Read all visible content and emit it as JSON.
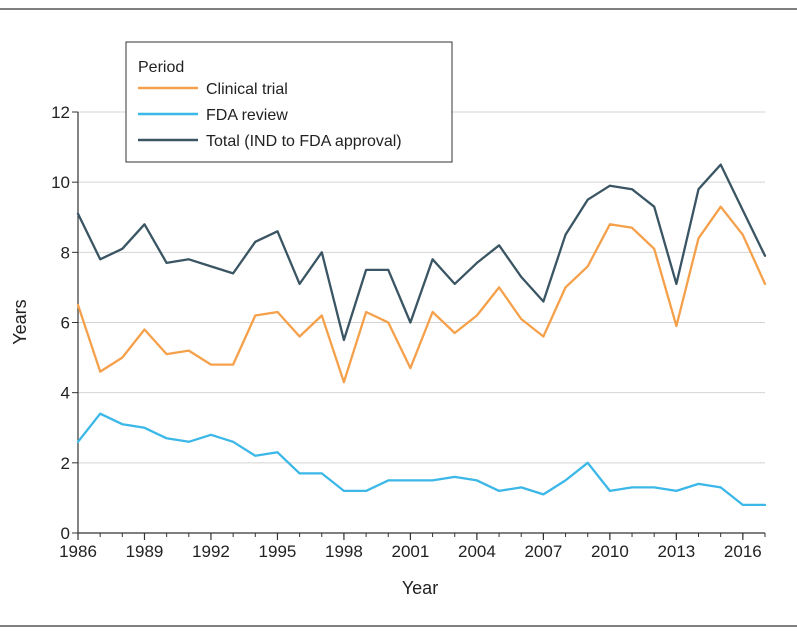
{
  "chart_data": {
    "type": "line",
    "xlabel": "Year",
    "ylabel": "Years",
    "xlim": [
      1986,
      2017
    ],
    "ylim": [
      0,
      12
    ],
    "x_ticks": [
      "1986",
      "1989",
      "1992",
      "1995",
      "1998",
      "2001",
      "2004",
      "2007",
      "2010",
      "2013",
      "2016"
    ],
    "y_ticks": [
      "0",
      "2",
      "4",
      "6",
      "8",
      "10",
      "12"
    ],
    "grid": "horizontal",
    "legend": {
      "title": "Period",
      "position": "top-left"
    },
    "x": [
      1986,
      1987,
      1988,
      1989,
      1990,
      1991,
      1992,
      1993,
      1994,
      1995,
      1996,
      1997,
      1998,
      1999,
      2000,
      2001,
      2002,
      2003,
      2004,
      2005,
      2006,
      2007,
      2008,
      2009,
      2010,
      2011,
      2012,
      2013,
      2014,
      2015,
      2016,
      2017
    ],
    "series": [
      {
        "name": "Clinical trial",
        "color": "#f5a04a",
        "values": [
          6.5,
          4.6,
          5.0,
          5.8,
          5.1,
          5.2,
          4.8,
          4.8,
          6.2,
          6.3,
          5.6,
          6.2,
          4.3,
          6.3,
          6.0,
          4.7,
          6.3,
          5.7,
          6.2,
          7.0,
          6.1,
          5.6,
          7.0,
          7.6,
          8.8,
          8.7,
          8.1,
          5.9,
          8.4,
          9.3,
          8.5,
          7.1
        ]
      },
      {
        "name": "FDA review",
        "color": "#3bb7e8",
        "values": [
          2.6,
          3.4,
          3.1,
          3.0,
          2.7,
          2.6,
          2.8,
          2.6,
          2.2,
          2.3,
          1.7,
          1.7,
          1.2,
          1.2,
          1.5,
          1.5,
          1.5,
          1.6,
          1.5,
          1.2,
          1.3,
          1.1,
          1.5,
          2.0,
          1.2,
          1.3,
          1.3,
          1.2,
          1.4,
          1.3,
          0.8,
          0.8
        ]
      },
      {
        "name": "Total (IND to FDA approval)",
        "color": "#3a5563",
        "values": [
          9.1,
          7.8,
          8.1,
          8.8,
          7.7,
          7.8,
          7.6,
          7.4,
          8.3,
          8.6,
          7.1,
          8.0,
          5.5,
          7.5,
          7.5,
          6.0,
          7.8,
          7.1,
          7.7,
          8.2,
          7.3,
          6.6,
          8.5,
          9.5,
          9.9,
          9.8,
          9.3,
          7.1,
          9.8,
          10.5,
          9.2,
          7.9
        ]
      }
    ]
  }
}
